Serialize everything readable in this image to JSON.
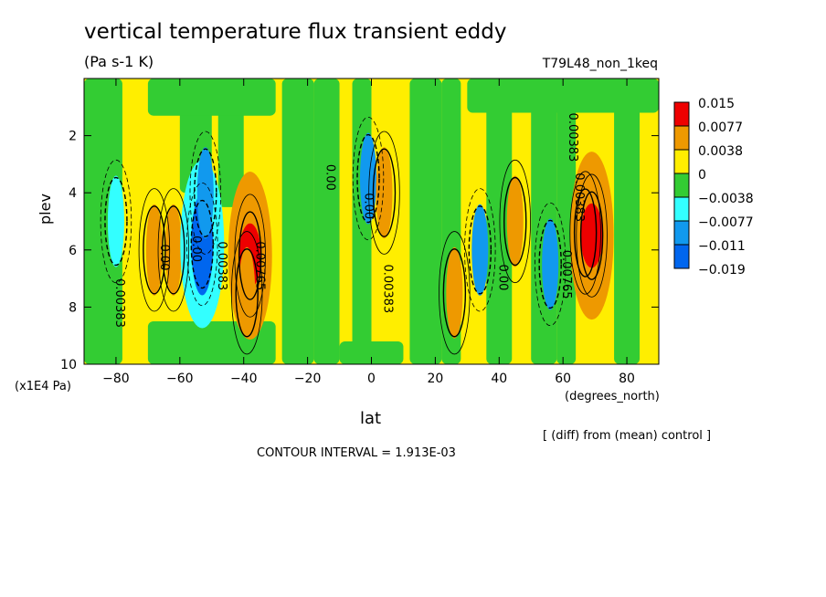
{
  "chart_data": {
    "type": "heatmap",
    "title": "vertical temperature flux transient eddy",
    "units": "(Pa s-1 K)",
    "run_label": "T79L48_non_1keq",
    "xlabel": "lat",
    "x_units": "(degrees_north)",
    "ylabel": "plev",
    "y_units": "(x1E4 Pa)",
    "xlim": [
      -90,
      90
    ],
    "ylim": [
      10,
      0
    ],
    "x_ticks": [
      -80,
      -60,
      -40,
      -20,
      0,
      20,
      40,
      60,
      80
    ],
    "x_tick_labels": [
      "−80",
      "−60",
      "−40",
      "−20",
      "0",
      "20",
      "40",
      "60",
      "80"
    ],
    "y_ticks": [
      2,
      4,
      6,
      8,
      10
    ],
    "y_tick_labels": [
      "2",
      "4",
      "6",
      "8",
      "10"
    ],
    "legend": {
      "placement": "right",
      "levels": [
        {
          "label": "0.015",
          "color": "#ee0000"
        },
        {
          "label": "0.0077",
          "color": "#ee9900"
        },
        {
          "label": "0.0038",
          "color": "#ffee00"
        },
        {
          "label": "0",
          "color": "#33cc33"
        },
        {
          "label": "−0.0038",
          "color": "#33ffff"
        },
        {
          "label": "−0.0077",
          "color": "#1199ee"
        },
        {
          "label": "−0.011",
          "color": "#0066ee"
        },
        {
          "label": "−0.019",
          "color": ""
        }
      ]
    },
    "contour_labels": [
      "0.00",
      "0.00383",
      "0.00765",
      "0.00383",
      "0.00"
    ],
    "footnote": "[ (diff) from (mean) control ]",
    "contour_interval": "CONTOUR INTERVAL = 1.913E-03",
    "features": [
      {
        "lat": -80,
        "p": 5.0,
        "value": -0.0038
      },
      {
        "lat": -68,
        "p": 6.0,
        "value": 0.0077
      },
      {
        "lat": -62,
        "p": 6.0,
        "value": 0.0077
      },
      {
        "lat": -53,
        "p": 5.8,
        "value": -0.011
      },
      {
        "lat": -52,
        "p": 4.0,
        "value": -0.0077
      },
      {
        "lat": -38,
        "p": 6.2,
        "value": 0.015
      },
      {
        "lat": -39,
        "p": 7.5,
        "value": 0.0077
      },
      {
        "lat": -1,
        "p": 3.5,
        "value": -0.0077
      },
      {
        "lat": 4,
        "p": 4.0,
        "value": 0.0077
      },
      {
        "lat": 26,
        "p": 7.5,
        "value": 0.0077
      },
      {
        "lat": 34,
        "p": 6.0,
        "value": -0.0077
      },
      {
        "lat": 45,
        "p": 5.0,
        "value": 0.0077
      },
      {
        "lat": 56,
        "p": 6.5,
        "value": -0.0077
      },
      {
        "lat": 67,
        "p": 5.4,
        "value": 0.0077
      },
      {
        "lat": 69,
        "p": 5.5,
        "value": 0.015
      }
    ]
  }
}
